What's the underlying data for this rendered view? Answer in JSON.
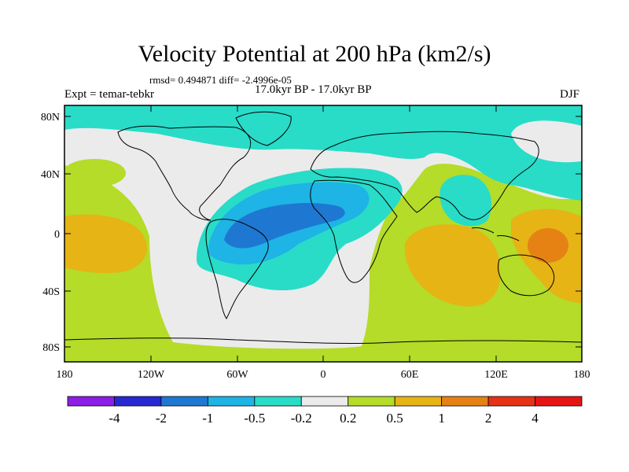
{
  "title": "Velocity Potential at 200 hPa (km2/s)",
  "stats": "rmsd= 0.494871  diff= -2.4996e-05",
  "experiment": "Expt = temar-tebkr",
  "period": "17.0kyr BP - 17.0kyr BP",
  "season": "DJF",
  "lat_labels": [
    "80N",
    "40N",
    "0",
    "40S",
    "80S"
  ],
  "lon_labels": [
    "180",
    "120W",
    "60W",
    "0",
    "60E",
    "120E",
    "180"
  ],
  "colorbar": {
    "labels": [
      "-4",
      "-2",
      "-1",
      "-0.5",
      "-0.2",
      "0.2",
      "0.5",
      "1",
      "2",
      "4"
    ],
    "colors": [
      "#8c1ee6",
      "#2828d2",
      "#1e78d2",
      "#1eb4e6",
      "#28dcc8",
      "#ebebeb",
      "#b4dc28",
      "#e6b414",
      "#e68214",
      "#e63214",
      "#e61414"
    ]
  },
  "colors": {
    "neg_0_5": "#28dcc8",
    "neg_1": "#1eb4e6",
    "neg_2": "#1e78d2",
    "near_zero": "#ebebeb",
    "pos_0_2": "#b4dc28",
    "pos_0_5": "#e6b414",
    "pos_1": "#e68214"
  }
}
